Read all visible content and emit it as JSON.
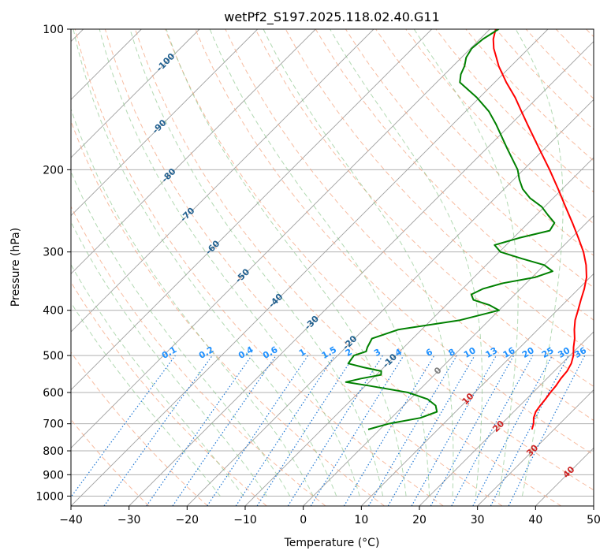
{
  "chart_data": {
    "type": "line",
    "title": "wetPf2_S197.2025.118.02.40.G11",
    "xlabel": "Temperature (°C)",
    "ylabel": "Pressure (hPa)",
    "xlim": [
      -40,
      50
    ],
    "ylim": [
      1050,
      100
    ],
    "y_scale": "log",
    "x_ticks": [
      "−40",
      "−30",
      "−20",
      "−10",
      "0",
      "10",
      "20",
      "30",
      "40",
      "50"
    ],
    "x_tick_values": [
      -40,
      -30,
      -20,
      -10,
      0,
      10,
      20,
      30,
      40,
      50
    ],
    "y_ticks": [
      "100",
      "200",
      "300",
      "400",
      "500",
      "600",
      "700",
      "800",
      "900",
      "1000"
    ],
    "y_tick_values": [
      100,
      200,
      300,
      400,
      500,
      600,
      700,
      800,
      900,
      1000
    ],
    "grid": true,
    "skew_degrees": 45,
    "colors": {
      "temperature": "#ff0000",
      "dewpoint": "#008000",
      "dry_adiabat": "#f4a582",
      "moist_adiabat": "#7fbf7f",
      "mixing_ratio": "#1f77d4",
      "isotherm": "#a0a0a0",
      "grid": "#b0b0b0",
      "dry_label": "#1f5f8f",
      "mixing_label": "#1e90ff",
      "isotherm_label": "#cc2222",
      "zero_label": "#808080"
    },
    "series": [
      {
        "key": "temperature",
        "pressure": [
          720,
          700,
          680,
          660,
          640,
          620,
          600,
          580,
          560,
          540,
          520,
          500,
          480,
          460,
          440,
          420,
          400,
          380,
          360,
          340,
          320,
          300,
          280,
          260,
          240,
          220,
          200,
          180,
          160,
          150,
          140,
          130,
          120,
          115,
          110,
          105,
          100
        ],
        "values": [
          26.2,
          25.5,
          24.5,
          23.8,
          23.5,
          23.3,
          23.0,
          22.8,
          22.4,
          22.2,
          21.6,
          20.6,
          19.2,
          17.9,
          16.3,
          14.8,
          13.6,
          12.3,
          11.0,
          9.4,
          7.2,
          4.5,
          1.2,
          -2.4,
          -6.4,
          -10.7,
          -15.5,
          -21.0,
          -27.1,
          -30.4,
          -33.9,
          -38.0,
          -42.1,
          -44.0,
          -46.0,
          -47.7,
          -49.0
        ]
      },
      {
        "key": "dewpoint",
        "pressure": [
          720,
          700,
          680,
          660,
          640,
          620,
          600,
          580,
          570,
          560,
          550,
          540,
          530,
          520,
          500,
          490,
          480,
          460,
          440,
          420,
          400,
          390,
          380,
          370,
          360,
          350,
          340,
          330,
          320,
          310,
          300,
          290,
          280,
          270,
          260,
          250,
          240,
          230,
          220,
          210,
          200,
          180,
          160,
          150,
          140,
          130,
          125,
          120,
          115,
          110,
          105,
          100
        ],
        "values": [
          -2.0,
          0.5,
          5.0,
          6.8,
          5.5,
          3.0,
          -1.5,
          -9.5,
          -14.0,
          -12.0,
          -9.2,
          -9.8,
          -13.5,
          -16.8,
          -17.2,
          -15.8,
          -16.3,
          -17.0,
          -14.0,
          -5.0,
          0.0,
          -2.5,
          -6.2,
          -7.5,
          -6.5,
          -4.0,
          0.5,
          2.5,
          0.0,
          -5.0,
          -9.8,
          -12.0,
          -9.0,
          -5.0,
          -5.5,
          -8.0,
          -10.5,
          -14.0,
          -16.8,
          -19.0,
          -21.0,
          -26.5,
          -32.5,
          -36.0,
          -40.5,
          -46.0,
          -47.2,
          -48.0,
          -49.2,
          -49.8,
          -49.5,
          -48.5
        ]
      }
    ],
    "dry_adiabat_labels": [
      "-100",
      "-90",
      "-80",
      "-70",
      "-60",
      "-50",
      "-40",
      "-30",
      "-20",
      "-10",
      "0"
    ],
    "dry_adiabat_label_temps": [
      -100,
      -90,
      -80,
      -70,
      -60,
      -50,
      -40,
      -30,
      -20,
      -10,
      0
    ],
    "isotherm_labels": [
      "10",
      "20",
      "30",
      "40"
    ],
    "isotherm_label_temps": [
      10,
      20,
      30,
      40
    ],
    "mixing_ratio_labels": [
      "0.1",
      "0.2",
      "0.4",
      "0.6",
      "1",
      "1.5",
      "2",
      "3",
      "4",
      "6",
      "8",
      "10",
      "13",
      "16",
      "20",
      "25",
      "30",
      "36"
    ],
    "mixing_ratio_values": [
      0.1,
      0.2,
      0.4,
      0.6,
      1,
      1.5,
      2,
      3,
      4,
      6,
      8,
      10,
      13,
      16,
      20,
      25,
      30,
      36
    ]
  }
}
